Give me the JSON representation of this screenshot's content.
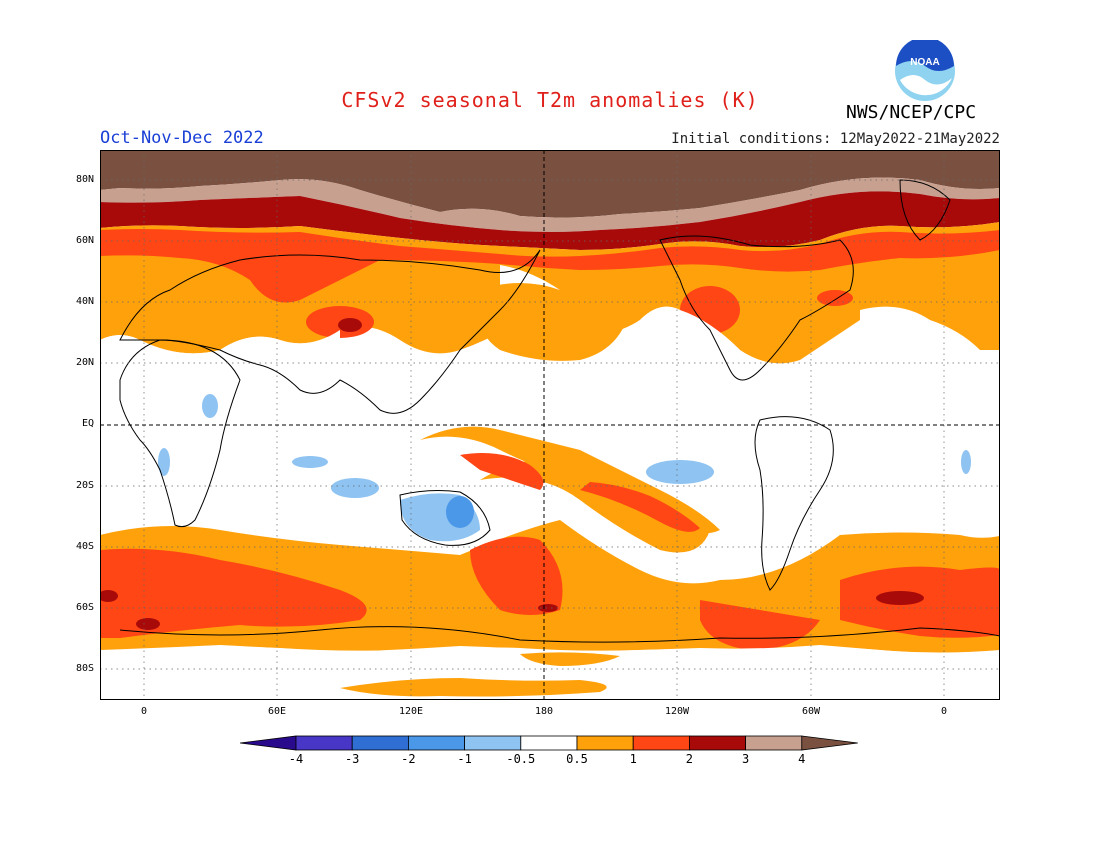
{
  "header": {
    "title": "CFSv2 seasonal T2m anomalies (K)",
    "period": "Oct-Nov-Dec 2022",
    "init_conditions": "Initial conditions: 12May2022-21May2022",
    "org": "NWS/NCEP/CPC",
    "logo_text": "NOAA"
  },
  "colors": {
    "title": "#e0201a",
    "period": "#1a3fd6",
    "logo_blue": "#1d4fc4",
    "logo_light": "#8fd3f0"
  },
  "map": {
    "lat_labels": [
      "80N",
      "60N",
      "40N",
      "20N",
      "EQ",
      "20S",
      "40S",
      "60S",
      "80S"
    ],
    "lon_labels": [
      "0",
      "60E",
      "120E",
      "180",
      "120W",
      "60W",
      "0"
    ]
  },
  "colorbar": {
    "colors": [
      "#2a0a8c",
      "#4836c6",
      "#2f6fd4",
      "#4b97e8",
      "#8ec3f2",
      "#ffffff",
      "#ffa10a",
      "#ff4614",
      "#a80a0a",
      "#c8a090",
      "#7a5040"
    ],
    "labels": [
      "-4",
      "-3",
      "-2",
      "-1",
      "-0.5",
      "0.5",
      "1",
      "2",
      "3",
      "4"
    ]
  }
}
